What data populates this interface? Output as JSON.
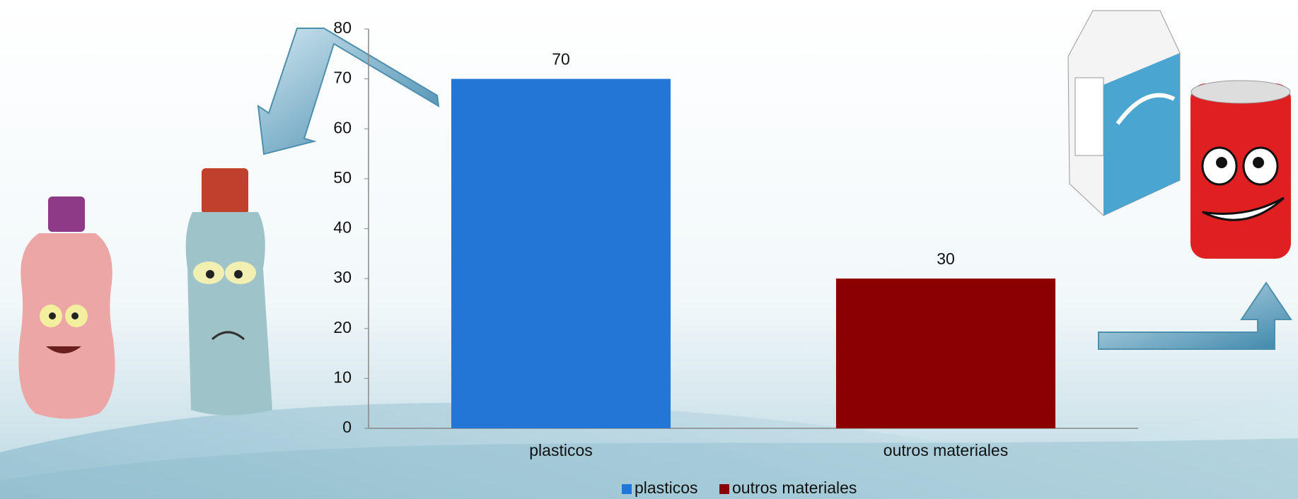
{
  "chart_data": {
    "type": "bar",
    "categories": [
      "plasticos",
      "outros materiales"
    ],
    "series": [
      {
        "name": "plasticos",
        "color": "#2176d6",
        "values": [
          70,
          null
        ]
      },
      {
        "name": "outros materiales",
        "color": "#8b0000",
        "values": [
          null,
          30
        ]
      }
    ],
    "ylim": [
      0,
      80
    ],
    "yticks": [
      0,
      10,
      20,
      30,
      40,
      50,
      60,
      70,
      80
    ],
    "grid": false,
    "legend": "bottom",
    "data_labels": true
  }
}
